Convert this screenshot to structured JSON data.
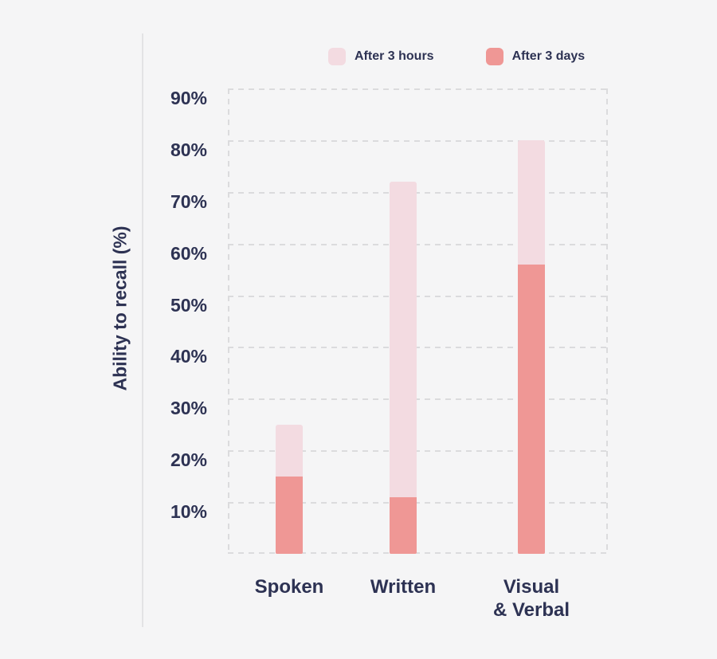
{
  "chart_data": {
    "type": "bar",
    "subtype": "overlay",
    "title": "",
    "categories": [
      "Spoken",
      "Written",
      "Visual\n& Verbal"
    ],
    "series": [
      {
        "name": "After 3 hours",
        "color": "#f3dbe1",
        "values": [
          25,
          72,
          80
        ]
      },
      {
        "name": "After 3 days",
        "color": "#ef9795",
        "values": [
          15,
          11,
          56
        ]
      }
    ],
    "xlabel": "",
    "ylabel": "Ability to recall (%)",
    "ylim": [
      0,
      90
    ],
    "ytick_step": 10,
    "ytick_suffix": "%",
    "grid": "dashed horizontal gridlines with dashed left and right plot borders",
    "legend_position": "top-center"
  },
  "colors": {
    "background": "#f5f5f6",
    "text": "#2d3253",
    "gridline": "#dbdbdd",
    "axis_divider_line": "#e3e3e5",
    "after_3_hours": "#f3dbe1",
    "after_3_days": "#ef9795"
  }
}
